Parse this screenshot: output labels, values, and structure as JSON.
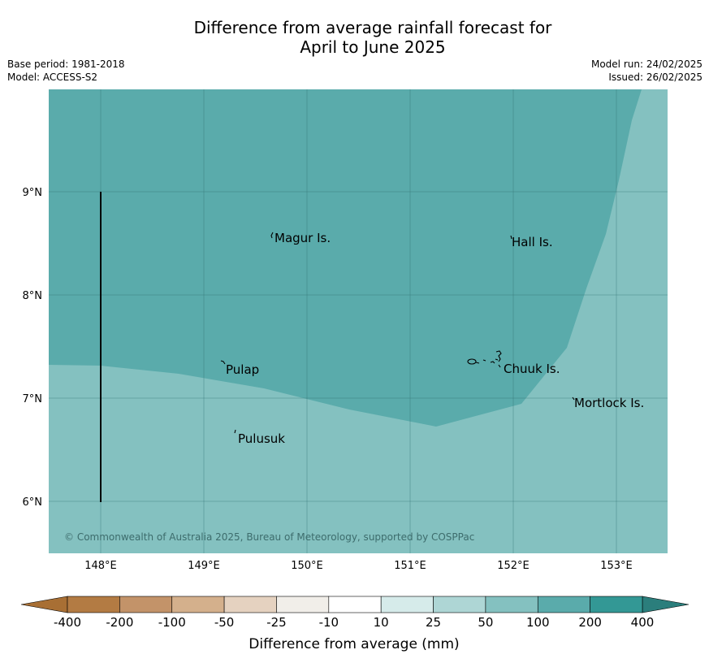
{
  "title": {
    "line1": "Difference from average rainfall forecast for",
    "line2": "April to June 2025"
  },
  "meta": {
    "base_period": "Base period: 1981-2018",
    "model": "Model: ACCESS-S2",
    "model_run": "Model run: 24/02/2025",
    "issued": "Issued: 26/02/2025"
  },
  "map": {
    "lon_ticks": [
      "148°E",
      "149°E",
      "150°E",
      "151°E",
      "152°E",
      "153°E"
    ],
    "lat_ticks": [
      "9°N",
      "8°N",
      "7°N",
      "6°N"
    ],
    "places": [
      {
        "name": "Magur Is."
      },
      {
        "name": "Hall Is."
      },
      {
        "name": "Pulap"
      },
      {
        "name": "Chuuk Is."
      },
      {
        "name": "Mortlock Is."
      },
      {
        "name": "Pulusuk"
      }
    ],
    "copyright": "© Commonwealth of Australia 2025, Bureau of Meteorology, supported by COSPPac",
    "region_colors": {
      "category_100_200": "#5aabab",
      "category_50_100": "#84c1c0"
    }
  },
  "colorbar": {
    "label": "Difference from average (mm)",
    "ticks": [
      "-400",
      "-200",
      "-100",
      "-50",
      "-25",
      "-10",
      "10",
      "25",
      "50",
      "100",
      "200",
      "400"
    ],
    "colors": [
      "#a86f34",
      "#b37b43",
      "#c39369",
      "#d4b08c",
      "#e5d2c0",
      "#f1eee9",
      "#ffffff",
      "#d6ebea",
      "#aed6d5",
      "#84c1c0",
      "#5aabab",
      "#339895",
      "#2b7e7c"
    ]
  }
}
